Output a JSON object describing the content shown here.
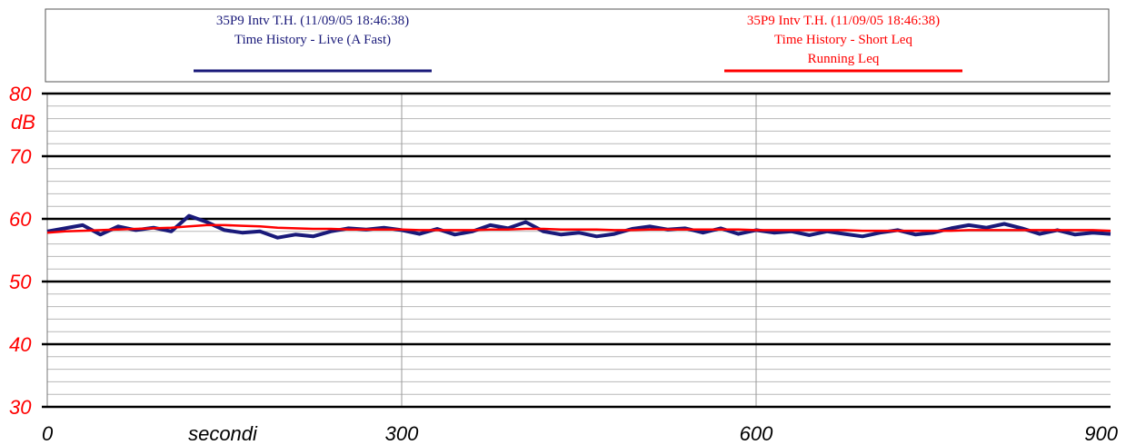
{
  "legend": {
    "left": {
      "line1": "35P9 Intv T.H. (11/09/05 18:46:38)",
      "line2": "Time History - Live (A Fast)",
      "color": "#1a1a7a"
    },
    "right": {
      "line1": "35P9 Intv T.H. (11/09/05 18:46:38)",
      "line2": "Time History - Short Leq",
      "line3": "Running Leq",
      "color": "#ff0000"
    }
  },
  "axis": {
    "y_unit": "dB",
    "y_ticks": [
      "80",
      "70",
      "60",
      "50",
      "40",
      "30"
    ],
    "x_ticks": [
      "0",
      "300",
      "600",
      "900"
    ],
    "x_label": "secondi",
    "label_color": "#ff0000",
    "tick_text_color": "#000000"
  },
  "chart_data": {
    "type": "line",
    "xlabel": "secondi",
    "ylabel": "dB",
    "xlim": [
      0,
      900
    ],
    "ylim": [
      30,
      80
    ],
    "grid": true,
    "legend_position": "top",
    "x": [
      0,
      15,
      30,
      45,
      60,
      75,
      90,
      105,
      120,
      135,
      150,
      165,
      180,
      195,
      210,
      225,
      240,
      255,
      270,
      285,
      300,
      315,
      330,
      345,
      360,
      375,
      390,
      405,
      420,
      435,
      450,
      465,
      480,
      495,
      510,
      525,
      540,
      555,
      570,
      585,
      600,
      615,
      630,
      645,
      660,
      675,
      690,
      705,
      720,
      735,
      750,
      765,
      780,
      795,
      810,
      825,
      840,
      855,
      870,
      885,
      900
    ],
    "series": [
      {
        "name": "Time History - Live (A Fast)",
        "color": "#1a1a7a",
        "values": [
          58.0,
          58.5,
          59.0,
          57.5,
          58.8,
          58.2,
          58.6,
          58.0,
          60.5,
          59.5,
          58.2,
          57.8,
          58.0,
          57.0,
          57.5,
          57.2,
          58.0,
          58.5,
          58.3,
          58.6,
          58.2,
          57.6,
          58.4,
          57.5,
          58.0,
          59.0,
          58.5,
          59.5,
          58.0,
          57.5,
          57.8,
          57.2,
          57.6,
          58.4,
          58.8,
          58.3,
          58.5,
          57.8,
          58.5,
          57.6,
          58.2,
          57.8,
          58.0,
          57.4,
          58.0,
          57.6,
          57.2,
          57.8,
          58.2,
          57.5,
          57.8,
          58.5,
          59.0,
          58.6,
          59.2,
          58.5,
          57.6,
          58.2,
          57.5,
          57.8,
          57.6
        ]
      },
      {
        "name": "Running Leq",
        "color": "#ff0000",
        "values": [
          57.8,
          58.0,
          58.1,
          58.2,
          58.3,
          58.4,
          58.5,
          58.6,
          58.8,
          59.0,
          59.0,
          58.9,
          58.8,
          58.6,
          58.5,
          58.4,
          58.4,
          58.3,
          58.3,
          58.3,
          58.3,
          58.2,
          58.2,
          58.2,
          58.2,
          58.3,
          58.3,
          58.4,
          58.4,
          58.3,
          58.3,
          58.3,
          58.2,
          58.2,
          58.3,
          58.3,
          58.3,
          58.3,
          58.3,
          58.3,
          58.2,
          58.2,
          58.2,
          58.2,
          58.2,
          58.2,
          58.1,
          58.1,
          58.1,
          58.1,
          58.1,
          58.1,
          58.2,
          58.2,
          58.2,
          58.2,
          58.2,
          58.2,
          58.2,
          58.2,
          58.1
        ]
      }
    ]
  }
}
